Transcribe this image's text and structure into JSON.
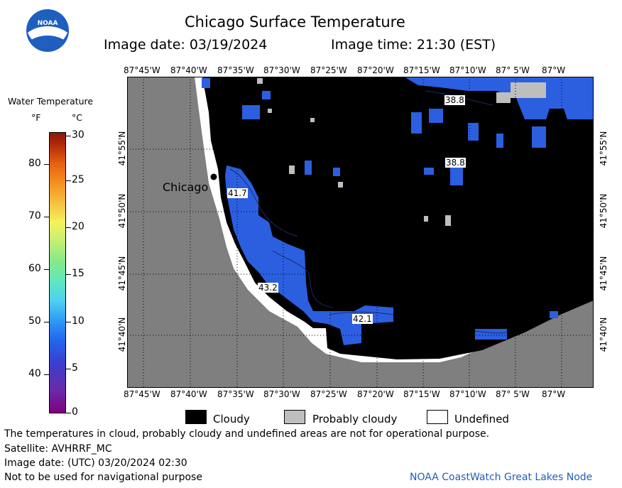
{
  "header": {
    "title": "Chicago Surface Temperature",
    "image_date": "Image date: 03/19/2024",
    "image_time": "Image time: 21:30 (EST)"
  },
  "logo": {
    "text": "NOAA",
    "icon": "noaa-logo-icon"
  },
  "colorbar": {
    "title": "Water Temperature",
    "unit_f": "°F",
    "unit_c": "°C",
    "f_ticks": [
      "80",
      "70",
      "60",
      "50",
      "40"
    ],
    "c_ticks": [
      "30",
      "25",
      "20",
      "15",
      "10",
      "5",
      "0"
    ]
  },
  "map": {
    "lon_labels": [
      "87°45'W",
      "87°40'W",
      "87°35'W",
      "87°30'W",
      "87°25'W",
      "87°20'W",
      "87°15'W",
      "87°10'W",
      "87° 5'W",
      "87°W"
    ],
    "lat_labels": [
      "41°55'N",
      "41°50'N",
      "41°45'N",
      "41°40'N"
    ],
    "city_label": "Chicago",
    "contour_labels": [
      "38.8",
      "38.8",
      "41.7",
      "43.2",
      "42.1"
    ]
  },
  "legend": {
    "cloudy": "Cloudy",
    "probably_cloudy": "Probably cloudy",
    "undefined": "Undefined"
  },
  "footer": {
    "disclaimer": "The temperatures in cloud, probably cloudy and undefined areas are not for operational purpose.",
    "satellite": "Satellite: AVHRRF_MC",
    "utc_date": "Image date: (UTC) 03/20/2024  02:30",
    "nav_warning": "Not to be used for navigational purpose",
    "credit": "NOAA CoastWatch Great Lakes Node"
  },
  "colors": {
    "land": "#7f7f7f",
    "cloud": "#000000",
    "probably_cloudy": "#bebebe",
    "undefined": "#ffffff",
    "water_blue": "#2b5fe0",
    "credit_blue": "#1f5fbf"
  }
}
